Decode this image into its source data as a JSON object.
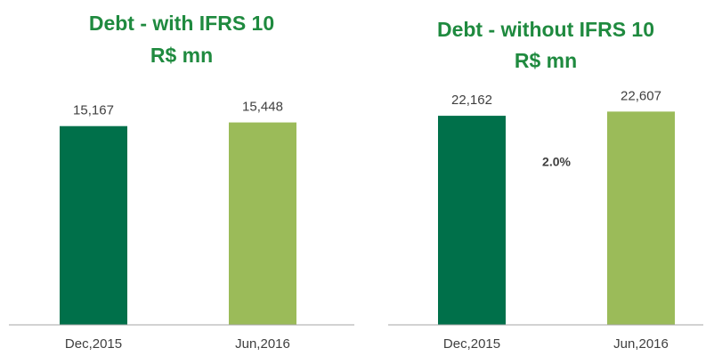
{
  "chart_data": [
    {
      "type": "bar",
      "title": "Debt - with IFRS 10",
      "subtitle": "R$ mn",
      "categories": [
        "Dec,2015",
        "Jun,2016"
      ],
      "values": [
        15167,
        15448
      ],
      "value_labels": [
        "15,167",
        "15,448"
      ],
      "colors": [
        "#00704a",
        "#9bbb59"
      ],
      "ylim": [
        0,
        18000
      ]
    },
    {
      "type": "bar",
      "title": "Debt - without IFRS 10",
      "subtitle": "R$ mn",
      "categories": [
        "Dec,2015",
        "Jun,2016"
      ],
      "values": [
        22162,
        22607
      ],
      "value_labels": [
        "22,162",
        "22,607"
      ],
      "colors": [
        "#00704a",
        "#9bbb59"
      ],
      "ylim": [
        0,
        25000
      ],
      "annotation": "2.0%"
    }
  ]
}
